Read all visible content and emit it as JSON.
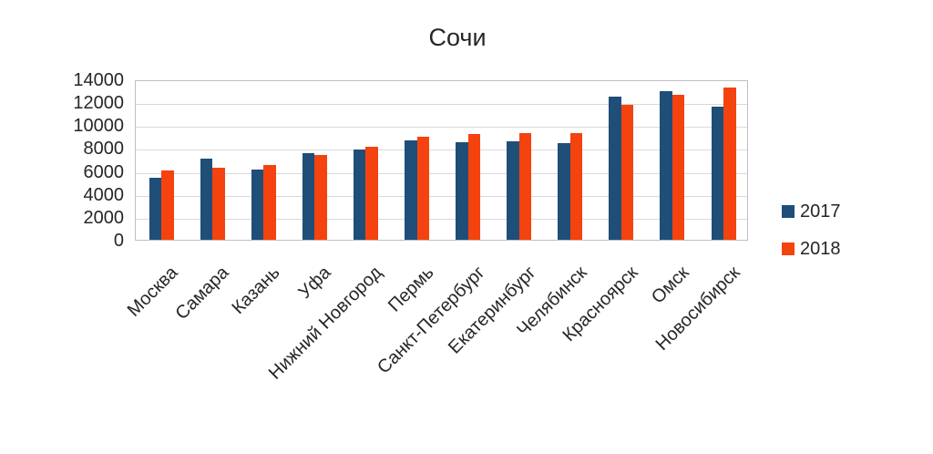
{
  "title": "Сочи",
  "colors": {
    "series_2017": "#1F4E79",
    "series_2018": "#F4430F",
    "gridline": "#D9D9D9",
    "plot_border": "#BFBFBF",
    "text": "#262626",
    "background": "#FFFFFF"
  },
  "legend": {
    "position": "right",
    "items": [
      "2017",
      "2018"
    ]
  },
  "chart_data": {
    "type": "bar",
    "title": "Сочи",
    "xlabel": "",
    "ylabel": "",
    "categories": [
      "Москва",
      "Самара",
      "Казань",
      "Уфа",
      "Нижний Новгород",
      "Пермь",
      "Санкт-Петербург",
      "Екатеринбург",
      "Челябинск",
      "Красноярск",
      "Омск",
      "Новосибирск"
    ],
    "series": [
      {
        "name": "2017",
        "color": "#1F4E79",
        "values": [
          5400,
          7100,
          6100,
          7600,
          7850,
          8650,
          8550,
          8600,
          8400,
          12500,
          12950,
          11600
        ]
      },
      {
        "name": "2018",
        "color": "#F4430F",
        "values": [
          6050,
          6250,
          6500,
          7400,
          8100,
          9000,
          9200,
          9350,
          9350,
          11750,
          12650,
          13300
        ]
      }
    ],
    "ylim": [
      0,
      14000
    ],
    "ytick_step": 2000,
    "ytick_labels": [
      "0",
      "2000",
      "4000",
      "6000",
      "8000",
      "10000",
      "12000",
      "14000"
    ],
    "grid": true,
    "legend_position": "right"
  }
}
